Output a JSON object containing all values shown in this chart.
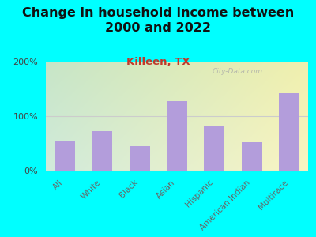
{
  "title": "Change in household income between\n2000 and 2022",
  "subtitle": "Killeen, TX",
  "watermark": "City-Data.com",
  "categories": [
    "All",
    "White",
    "Black",
    "Asian",
    "Hispanic",
    "American Indian",
    "Multirace"
  ],
  "values": [
    55,
    72,
    45,
    128,
    82,
    52,
    142
  ],
  "bar_color": "#b39ddb",
  "title_fontsize": 11.5,
  "subtitle_fontsize": 9.5,
  "subtitle_color": "#c0392b",
  "background_outer": "#00ffff",
  "ylim": [
    0,
    200
  ],
  "yticks": [
    0,
    100,
    200
  ],
  "ytick_labels": [
    "0%",
    "100%",
    "200%"
  ]
}
